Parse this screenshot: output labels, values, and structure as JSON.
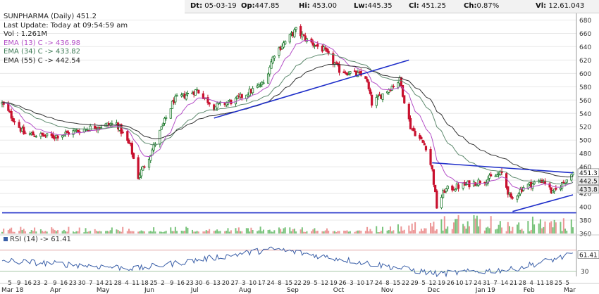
{
  "info": {
    "date_label": "Dt:",
    "date": "05-03-19",
    "open_label": "Op:",
    "open": "447.85",
    "high_label": "Hi:",
    "high": "453.00",
    "low_label": "Lw:",
    "low": "445.35",
    "close_label": "Cl:",
    "close": "451.25",
    "change_label": "Ch:",
    "change": "0.87%",
    "volume_label": "Vl:",
    "volume": "12.61.043"
  },
  "legend": {
    "title": "SUNPHARMA (Daily) 451.2",
    "last_update": "Last Update: Today at 09:54:59 am",
    "vol": "Vol : 1.261M",
    "ema13": "EMA (13) C -> 436.98",
    "ema34": "EMA (34) C -> 433.82",
    "ema55": "EMA (55) C -> 442.54"
  },
  "rsi_legend": "RSI (14) -> 61.41",
  "colors": {
    "up_candle": "#1f7a2e",
    "down_candle": "#c8102e",
    "ema13": "#b44fc7",
    "ema34": "#5e8a6e",
    "ema55": "#333333",
    "trendline": "#1e2ec9",
    "rsi_line": "#3a5fa8",
    "grid": "#e8e8e8"
  },
  "chart_data": [
    {
      "type": "candlestick",
      "title": "SUNPHARMA (Daily) 451.2",
      "ylim": [
        360,
        690
      ],
      "yticks": [
        360,
        380,
        400,
        420,
        440,
        460,
        480,
        500,
        520,
        540,
        560,
        580,
        600,
        620,
        640,
        660,
        680
      ],
      "last_price_tag": "451.3",
      "ema_tags": [
        "442.5",
        "433.8"
      ],
      "x_months": [
        "Mar 18",
        "Apr",
        "May",
        "Jun",
        "Jul",
        "Aug",
        "Sep",
        "Oct",
        "Nov",
        "Dec",
        "Jan 19",
        "Feb",
        "Mar"
      ],
      "x_day_labels": [
        "5",
        "9",
        "16",
        "23",
        "2",
        "9",
        "16",
        "23",
        "30",
        "7",
        "14",
        "21",
        "28",
        "4",
        "11",
        "18",
        "25",
        "2",
        "9",
        "16",
        "23",
        "30",
        "6",
        "13",
        "20",
        "27",
        "3",
        "10",
        "17",
        "24",
        "8",
        "15",
        "22",
        "29",
        "5",
        "12",
        "19",
        "26",
        "3",
        "10",
        "17",
        "24",
        "8",
        "15",
        "22",
        "29",
        "5",
        "12",
        "19",
        "26",
        "10",
        "17",
        "24",
        "31",
        "7",
        "14",
        "21",
        "28",
        "4",
        "11",
        "18",
        "25",
        "5"
      ],
      "close_series_anchors": [
        {
          "x": "2018-03-01",
          "y": 555
        },
        {
          "x": "2018-03-15",
          "y": 510
        },
        {
          "x": "2018-04-02",
          "y": 505
        },
        {
          "x": "2018-04-30",
          "y": 520
        },
        {
          "x": "2018-05-14",
          "y": 525
        },
        {
          "x": "2018-05-23",
          "y": 490
        },
        {
          "x": "2018-05-28",
          "y": 445
        },
        {
          "x": "2018-06-05",
          "y": 480
        },
        {
          "x": "2018-06-20",
          "y": 560
        },
        {
          "x": "2018-07-05",
          "y": 575
        },
        {
          "x": "2018-07-16",
          "y": 550
        },
        {
          "x": "2018-07-30",
          "y": 560
        },
        {
          "x": "2018-08-17",
          "y": 585
        },
        {
          "x": "2018-08-24",
          "y": 630
        },
        {
          "x": "2018-09-07",
          "y": 665
        },
        {
          "x": "2018-09-14",
          "y": 650
        },
        {
          "x": "2018-09-25",
          "y": 635
        },
        {
          "x": "2018-10-05",
          "y": 605
        },
        {
          "x": "2018-10-22",
          "y": 595
        },
        {
          "x": "2018-10-26",
          "y": 555
        },
        {
          "x": "2018-11-05",
          "y": 575
        },
        {
          "x": "2018-11-13",
          "y": 590
        },
        {
          "x": "2018-11-20",
          "y": 520
        },
        {
          "x": "2018-11-30",
          "y": 490
        },
        {
          "x": "2018-12-04",
          "y": 455
        },
        {
          "x": "2018-12-07",
          "y": 400
        },
        {
          "x": "2018-12-12",
          "y": 425
        },
        {
          "x": "2018-12-20",
          "y": 430
        },
        {
          "x": "2019-01-07",
          "y": 440
        },
        {
          "x": "2019-01-18",
          "y": 450
        },
        {
          "x": "2019-01-24",
          "y": 410
        },
        {
          "x": "2019-02-01",
          "y": 430
        },
        {
          "x": "2019-02-14",
          "y": 440
        },
        {
          "x": "2019-02-20",
          "y": 420
        },
        {
          "x": "2019-03-05",
          "y": 451.25
        }
      ],
      "volume_anchors": [
        {
          "x": "2018-08-24",
          "y": 0.35
        },
        {
          "x": "2018-10-26",
          "y": 0.4
        },
        {
          "x": "2018-11-20",
          "y": 0.5
        },
        {
          "x": "2018-12-07",
          "y": 1.0
        },
        {
          "x": "2019-01-24",
          "y": 0.9
        }
      ],
      "trendlines": [
        {
          "name": "rising-support-1",
          "from": {
            "x": "2018-07-16",
            "y": 533
          },
          "to": {
            "x": "2018-11-19",
            "y": 620
          }
        },
        {
          "name": "horizontal-support",
          "from": {
            "x": "2018-03-01",
            "y": 391
          },
          "to": {
            "x": "2019-03-05",
            "y": 391
          }
        },
        {
          "name": "upper-triangle",
          "from": {
            "x": "2018-12-04",
            "y": 466
          },
          "to": {
            "x": "2019-03-05",
            "y": 451
          }
        },
        {
          "name": "lower-triangle",
          "from": {
            "x": "2019-01-25",
            "y": 393
          },
          "to": {
            "x": "2019-03-05",
            "y": 418
          }
        }
      ]
    },
    {
      "type": "line",
      "title": "RSI (14) -> 61.41",
      "ylim": [
        20,
        80
      ],
      "yticks": [
        30,
        61.41
      ],
      "bands": [
        30,
        70
      ],
      "last_value": "61.41",
      "anchors": [
        {
          "x": "2018-03-01",
          "y": 50
        },
        {
          "x": "2018-05-28",
          "y": 35
        },
        {
          "x": "2018-08-24",
          "y": 72
        },
        {
          "x": "2018-12-07",
          "y": 25
        },
        {
          "x": "2019-01-24",
          "y": 33
        },
        {
          "x": "2019-03-05",
          "y": 61.41
        }
      ]
    }
  ]
}
